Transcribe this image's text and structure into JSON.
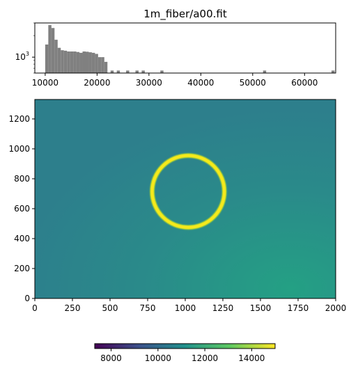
{
  "figure": {
    "title": "1m_fiber/a00.fit"
  },
  "chart_data": [
    {
      "type": "bar",
      "name": "histogram",
      "yscale": "log",
      "xlim": [
        8000,
        66000
      ],
      "ylim": [
        600,
        3000
      ],
      "xticks": [
        10000,
        20000,
        30000,
        40000,
        50000,
        60000
      ],
      "ytick_label": "10^3",
      "ytick_value": 1000,
      "bin_width": 600,
      "bar_color": "#808080",
      "bins": [
        [
          10000,
          1500
        ],
        [
          10600,
          2800
        ],
        [
          11200,
          2550
        ],
        [
          11800,
          1750
        ],
        [
          12400,
          1350
        ],
        [
          13000,
          1250
        ],
        [
          13600,
          1230
        ],
        [
          14200,
          1200
        ],
        [
          14800,
          1200
        ],
        [
          15400,
          1200
        ],
        [
          16000,
          1180
        ],
        [
          16600,
          1150
        ],
        [
          17200,
          1200
        ],
        [
          17800,
          1190
        ],
        [
          18400,
          1170
        ],
        [
          19000,
          1150
        ],
        [
          19600,
          1110
        ],
        [
          20200,
          1000
        ],
        [
          20800,
          1000
        ],
        [
          21400,
          860
        ],
        [
          22600,
          650
        ],
        [
          23800,
          650
        ],
        [
          25600,
          650
        ],
        [
          27400,
          650
        ],
        [
          28600,
          650
        ],
        [
          32200,
          650
        ],
        [
          52000,
          650
        ],
        [
          65200,
          650
        ]
      ]
    },
    {
      "type": "heatmap",
      "name": "image",
      "xlim": [
        0,
        2000
      ],
      "ylim": [
        0,
        1330
      ],
      "xticks": [
        0,
        250,
        500,
        750,
        1000,
        1250,
        1500,
        1750,
        2000
      ],
      "yticks": [
        0,
        200,
        400,
        600,
        800,
        1000,
        1200
      ],
      "background_value": 11300,
      "ring": {
        "center_x": 1020,
        "center_y": 715,
        "radius_x": 240,
        "radius_y": 240,
        "value": 15000
      },
      "colorscale": "viridis",
      "colors": [
        "#440154",
        "#3b528b",
        "#21918c",
        "#5ec962",
        "#fde725"
      ],
      "colorbar": {
        "vmin": 7300,
        "vmax": 15000,
        "ticks": [
          8000,
          10000,
          12000,
          14000
        ]
      }
    }
  ]
}
